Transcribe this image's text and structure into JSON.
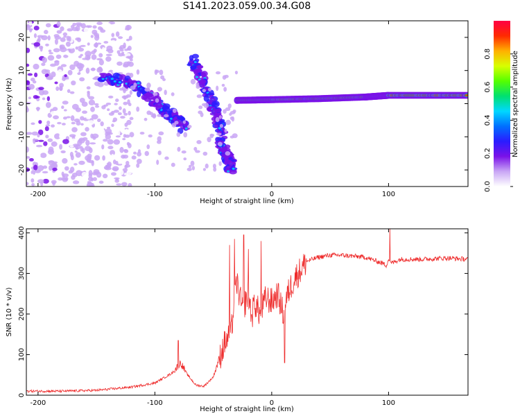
{
  "title": "S141.2023.059.00.34.G08",
  "chart_data": [
    {
      "type": "heatmap",
      "title": "S141.2023.059.00.34.G08",
      "xlabel": "Height of straight line (km)",
      "ylabel": "Frequency (Hz)",
      "xlim": [
        -210,
        168
      ],
      "ylim": [
        -25,
        25
      ],
      "xticks": [
        -200,
        -100,
        0,
        100
      ],
      "yticks": [
        -20,
        -10,
        0,
        10,
        20
      ],
      "colorbar": {
        "label": "Normalized spectral amplitude",
        "ticks": [
          0.0,
          0.2,
          0.4,
          0.6,
          0.8
        ],
        "range": [
          0,
          1
        ],
        "colors": [
          "#ffffff",
          "#c9a6f5",
          "#7a12e8",
          "#2a1cff",
          "#0070ff",
          "#00d8ff",
          "#00e070",
          "#55ff00",
          "#d8ff00",
          "#ffb000",
          "#ff2a00",
          "#ff0044"
        ]
      },
      "features": [
        {
          "name": "scattered noise",
          "x_range": [
            -210,
            -120
          ],
          "freq_range": [
            -25,
            25
          ],
          "amplitude": 0.1
        },
        {
          "name": "descending branch 1",
          "x": [
            -145,
            -120,
            -100,
            -85,
            -75
          ],
          "freq": [
            8,
            6,
            1,
            -4,
            -7
          ],
          "amplitude": 0.3
        },
        {
          "name": "descending branch 2",
          "x": [
            -68,
            -58,
            -48,
            -42
          ],
          "freq": [
            13,
            6,
            -3,
            -9
          ],
          "amplitude": 0.3
        },
        {
          "name": "descending branch 3",
          "x": [
            -45,
            -38,
            -34
          ],
          "freq": [
            -11,
            -16,
            -20
          ],
          "amplitude": 0.25
        },
        {
          "name": "direct tone",
          "x": [
            -30,
            0,
            40,
            80,
            100,
            168
          ],
          "freq": [
            1,
            1.2,
            1.5,
            2,
            2.5,
            2.5
          ],
          "amplitude": 0.95
        }
      ]
    },
    {
      "type": "line",
      "xlabel": "Height of straight line (km)",
      "ylabel": "SNR (10 * v/v)",
      "xlim": [
        -210,
        168
      ],
      "ylim": [
        0,
        410
      ],
      "xticks": [
        -200,
        -100,
        0,
        100
      ],
      "yticks": [
        0,
        100,
        200,
        300,
        400
      ],
      "series": [
        {
          "name": "SNR",
          "color": "#ee2a2a",
          "x": [
            -210,
            -180,
            -150,
            -120,
            -100,
            -85,
            -78,
            -72,
            -65,
            -58,
            -50,
            -45,
            -40,
            -35,
            -33,
            -30,
            -25,
            -20,
            -17,
            -15,
            -10,
            -5,
            0,
            5,
            10,
            12,
            15,
            20,
            25,
            30,
            40,
            50,
            60,
            80,
            90,
            95,
            98,
            100,
            102,
            110,
            130,
            150,
            168
          ],
          "values": [
            10,
            10,
            12,
            20,
            30,
            55,
            80,
            50,
            25,
            22,
            45,
            90,
            130,
            150,
            200,
            280,
            210,
            250,
            190,
            230,
            200,
            240,
            230,
            250,
            200,
            230,
            260,
            290,
            310,
            330,
            340,
            345,
            345,
            340,
            330,
            325,
            320,
            335,
            325,
            335,
            335,
            338,
            335
          ]
        }
      ],
      "spikes": [
        {
          "x": -36,
          "value": 370
        },
        {
          "x": -32,
          "value": 385
        },
        {
          "x": -24,
          "value": 395
        },
        {
          "x": -20,
          "value": 360
        },
        {
          "x": -9,
          "value": 380
        },
        {
          "x": 11,
          "value": 80
        },
        {
          "x": 101,
          "value": 412
        },
        {
          "x": -80,
          "value": 135
        }
      ]
    }
  ]
}
